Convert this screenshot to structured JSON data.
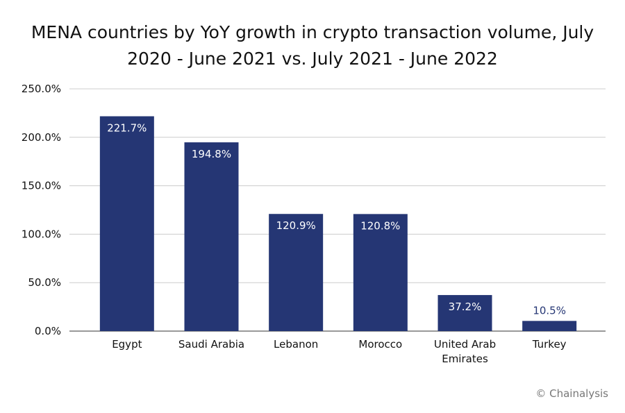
{
  "chart_data": {
    "type": "bar",
    "title": "MENA countries by YoY growth in crypto transaction volume, July 2020 - June 2021 vs. July 2021 - June 2022",
    "categories": [
      "Egypt",
      "Saudi Arabia",
      "Lebanon",
      "Morocco",
      "United Arab Emirates",
      "Turkey"
    ],
    "values": [
      221.7,
      194.8,
      120.9,
      120.8,
      37.2,
      10.5
    ],
    "value_labels": [
      "221.7%",
      "194.8%",
      "120.9%",
      "120.8%",
      "37.2%",
      "10.5%"
    ],
    "color": "#253674",
    "ylim": [
      0,
      250
    ],
    "yticks": [
      {
        "value": 0,
        "label": "0.0%"
      },
      {
        "value": 50,
        "label": "50.0%"
      },
      {
        "value": 100,
        "label": "100.0%"
      },
      {
        "value": 150,
        "label": "150.0%"
      },
      {
        "value": 200,
        "label": "200.0%"
      },
      {
        "value": 250,
        "label": "250.0%"
      }
    ],
    "grid": true,
    "source": "© Chainalysis"
  }
}
